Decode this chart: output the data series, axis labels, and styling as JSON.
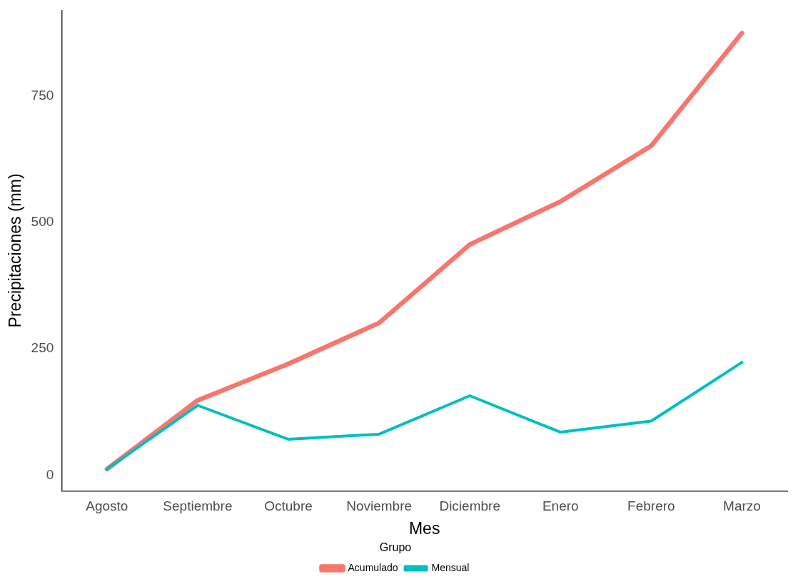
{
  "chart_data": {
    "type": "line",
    "xlabel": "Mes",
    "ylabel": "Precipitaciones (mm)",
    "legend_title": "Grupo",
    "categories": [
      "Agosto",
      "Septiembre",
      "Octubre",
      "Noviembre",
      "Diciembre",
      "Enero",
      "Febrero",
      "Marzo"
    ],
    "series": [
      {
        "name": "Acumulado",
        "color": "#f8766d",
        "values": [
          12,
          148,
          220,
          301,
          456,
          541,
          651,
          874
        ]
      },
      {
        "name": "Mensual",
        "color": "#00bfc4",
        "values": [
          12,
          138,
          71,
          81,
          157,
          85,
          107,
          223
        ]
      }
    ],
    "ylim": [
      -31,
      919
    ],
    "yticks": [
      0,
      250,
      500,
      750
    ],
    "grid": false,
    "legend": "bottom",
    "marker": "none",
    "line_style": "solid"
  }
}
